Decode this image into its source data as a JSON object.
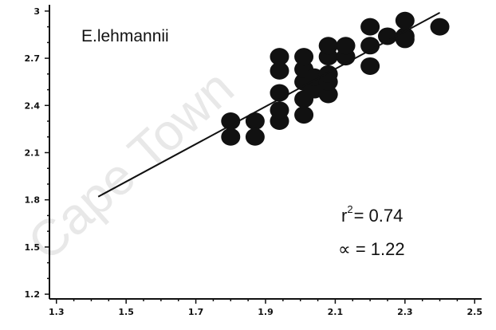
{
  "watermark": "Cape Town",
  "chart_data": {
    "type": "scatter",
    "title": "E.lehmannii",
    "xlabel": "",
    "ylabel": "",
    "xlim": [
      1.28,
      2.52
    ],
    "ylim": [
      1.17,
      3.04
    ],
    "xticks": [
      1.3,
      1.5,
      1.7,
      1.9,
      2.1,
      2.3,
      2.5
    ],
    "yticks": [
      1.2,
      1.5,
      1.8,
      2.1,
      2.4,
      2.7,
      3.0
    ],
    "xtick_labels": [
      "1.3",
      "1.5",
      "1.7",
      "1.9",
      "2.1",
      "2.3",
      "2.5"
    ],
    "ytick_labels": [
      "1.2",
      "1.5",
      "1.8",
      "2.1",
      "2.4",
      "2.7",
      "3"
    ],
    "grid": false,
    "points": [
      {
        "x": 1.8,
        "y": 2.3
      },
      {
        "x": 1.8,
        "y": 2.2
      },
      {
        "x": 1.87,
        "y": 2.3
      },
      {
        "x": 1.87,
        "y": 2.2
      },
      {
        "x": 1.94,
        "y": 2.3
      },
      {
        "x": 1.94,
        "y": 2.37
      },
      {
        "x": 1.94,
        "y": 2.48
      },
      {
        "x": 1.94,
        "y": 2.62
      },
      {
        "x": 1.94,
        "y": 2.71
      },
      {
        "x": 2.01,
        "y": 2.34
      },
      {
        "x": 2.01,
        "y": 2.44
      },
      {
        "x": 2.01,
        "y": 2.55
      },
      {
        "x": 2.01,
        "y": 2.63
      },
      {
        "x": 2.01,
        "y": 2.71
      },
      {
        "x": 2.04,
        "y": 2.5
      },
      {
        "x": 2.04,
        "y": 2.58
      },
      {
        "x": 2.08,
        "y": 2.47
      },
      {
        "x": 2.08,
        "y": 2.55
      },
      {
        "x": 2.08,
        "y": 2.6
      },
      {
        "x": 2.08,
        "y": 2.71
      },
      {
        "x": 2.08,
        "y": 2.78
      },
      {
        "x": 2.13,
        "y": 2.71
      },
      {
        "x": 2.13,
        "y": 2.78
      },
      {
        "x": 2.2,
        "y": 2.65
      },
      {
        "x": 2.2,
        "y": 2.78
      },
      {
        "x": 2.2,
        "y": 2.9
      },
      {
        "x": 2.25,
        "y": 2.84
      },
      {
        "x": 2.3,
        "y": 2.84
      },
      {
        "x": 2.3,
        "y": 2.94
      },
      {
        "x": 2.3,
        "y": 2.82
      },
      {
        "x": 2.4,
        "y": 2.9
      }
    ],
    "fit_line": {
      "x": [
        1.42,
        2.4
      ],
      "y": [
        1.82,
        2.99
      ]
    },
    "annotations": {
      "r2_base": "r",
      "r2_sup": "2",
      "r2_value": "= 0.74",
      "alpha_text": "∝ = 1.22"
    },
    "colors": {
      "marker": "#111111",
      "line": "#111111",
      "axis": "#111111"
    }
  }
}
